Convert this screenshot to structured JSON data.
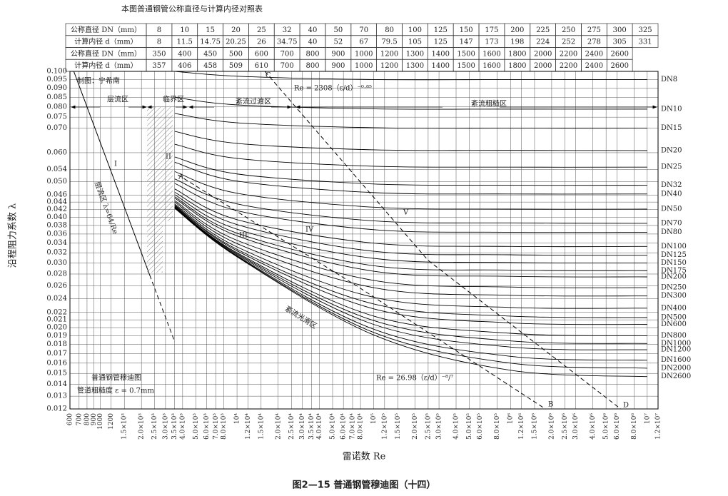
{
  "table": {
    "title": "本图普通钢管公称直径与计算内径对照表",
    "rows": [
      [
        "公称直径 DN（mm）",
        "8",
        "10",
        "15",
        "20",
        "25",
        "32",
        "40",
        "50",
        "70",
        "80",
        "100",
        "125",
        "150",
        "175",
        "200",
        "225",
        "250",
        "275",
        "300",
        "325"
      ],
      [
        "计算内径 d（mm）",
        "8",
        "11.5",
        "14.75",
        "20.25",
        "26",
        "34.75",
        "40",
        "52",
        "67",
        "79.5",
        "105",
        "125",
        "147",
        "173",
        "198",
        "224",
        "252",
        "278",
        "305",
        "331"
      ],
      [
        "公称直径 DN（mm）",
        "350",
        "400",
        "450",
        "500",
        "600",
        "700",
        "800",
        "900",
        "1000",
        "1200",
        "1300",
        "1400",
        "1500",
        "1600",
        "1800",
        "2000",
        "2200",
        "2400",
        "2600"
      ],
      [
        "计算内径 d（mm）",
        "357",
        "406",
        "458",
        "509",
        "610",
        "700",
        "800",
        "900",
        "1000",
        "1200",
        "1300",
        "1400",
        "1500",
        "1600",
        "1800",
        "2000",
        "2200",
        "2400",
        "2600"
      ]
    ]
  },
  "chart_data": {
    "type": "line",
    "caption": "图2—15  普通钢管穆迪图（十四）",
    "x_label": "雷诺数 Re",
    "y_label": "沿程阻力系数 λ",
    "log_x": true,
    "log_y": true,
    "grid": true,
    "color": "#000000",
    "xlim": [
      600,
      12000000
    ],
    "ylim": [
      0.012,
      0.1
    ],
    "xticks": [
      600,
      700,
      800,
      900,
      1000,
      1200,
      {
        "value": 1500,
        "label": "1.5×10³"
      },
      {
        "value": 2000,
        "label": "2.0×10³"
      },
      {
        "value": 2500,
        "label": "2.5×10³"
      },
      {
        "value": 3000,
        "label": "3.0×10³"
      },
      {
        "value": 3500,
        "label": "3.5×10³"
      },
      {
        "value": 4000,
        "label": "4.0×10³"
      },
      {
        "value": 5000,
        "label": "5.0×10³"
      },
      {
        "value": 6000,
        "label": "6.0×10³"
      },
      {
        "value": 7000,
        "label": "7.0×10³"
      },
      {
        "value": 8000,
        "label": "8.0×10³"
      },
      {
        "value": 10000,
        "label": "10⁴"
      },
      {
        "value": 12000,
        "label": "1.2×10⁴"
      },
      {
        "value": 15000,
        "label": "1.5×10⁴"
      },
      {
        "value": 20000,
        "label": "2.0×10⁴"
      },
      {
        "value": 25000,
        "label": "2.5×10⁴"
      },
      {
        "value": 30000,
        "label": "3.0×10⁴"
      },
      {
        "value": 35000,
        "label": "3.5×10⁴"
      },
      {
        "value": 40000,
        "label": "4.0×10⁴"
      },
      {
        "value": 50000,
        "label": "5.0×10⁴"
      },
      {
        "value": 60000,
        "label": "6.0×10⁴"
      },
      {
        "value": 70000,
        "label": "7.0×10⁴"
      },
      {
        "value": 80000,
        "label": "8.0×10⁴"
      },
      {
        "value": 100000,
        "label": "10⁵"
      },
      {
        "value": 120000,
        "label": "1.2×10⁵"
      },
      {
        "value": 150000,
        "label": "1.5×10⁵"
      },
      {
        "value": 200000,
        "label": "2.0×10⁵"
      },
      {
        "value": 250000,
        "label": "2.5×10⁵"
      },
      {
        "value": 300000,
        "label": "3.0×10⁵"
      },
      {
        "value": 400000,
        "label": "4.0×10⁵"
      },
      {
        "value": 500000,
        "label": "5.0×10⁵"
      },
      {
        "value": 600000,
        "label": "6.0×10⁵"
      },
      {
        "value": 800000,
        "label": "8.0×10⁵"
      },
      {
        "value": 1000000,
        "label": "10⁶"
      },
      {
        "value": 1200000,
        "label": "1.2×10⁶"
      },
      {
        "value": 1500000,
        "label": "1.5×10⁶"
      },
      {
        "value": 2000000,
        "label": "2.0×10⁶"
      },
      {
        "value": 2500000,
        "label": "2.5×10⁶"
      },
      {
        "value": 3000000,
        "label": "3.0×10⁶"
      },
      {
        "value": 4000000,
        "label": "4.0×10⁶"
      },
      {
        "value": 5000000,
        "label": "5.0×10⁶"
      },
      {
        "value": 6000000,
        "label": "6.0×10⁶"
      },
      {
        "value": 8000000,
        "label": "8.0×10⁶"
      },
      {
        "value": 10000000,
        "label": "10⁷"
      },
      {
        "value": 12000000,
        "label": "1.2×10⁷"
      }
    ],
    "yticks": [
      {
        "value": 0.1,
        "label": "0.100"
      },
      0.095,
      {
        "value": 0.09,
        "label": "0.090"
      },
      0.085,
      {
        "value": 0.08,
        "label": "0.080"
      },
      0.075,
      {
        "value": 0.07,
        "label": "0.070"
      },
      {
        "value": 0.06,
        "label": "0.060"
      },
      0.054,
      {
        "value": 0.05,
        "label": "0.050"
      },
      0.046,
      0.044,
      0.042,
      {
        "value": 0.04,
        "label": "0.040"
      },
      0.038,
      0.036,
      0.034,
      0.032,
      {
        "value": 0.03,
        "label": "0.030"
      },
      0.028,
      0.026,
      0.024,
      0.022,
      0.021,
      {
        "value": 0.02,
        "label": "0.020"
      },
      0.019,
      0.018,
      0.017,
      0.016,
      0.015,
      0.014,
      0.013,
      0.012
    ],
    "x": [
      3500,
      10000,
      100000,
      1000000,
      10000000
    ],
    "series": [
      {
        "name": "DN8",
        "values": [
          0.1,
          0.097,
          0.095,
          0.095,
          0.095
        ]
      },
      {
        "name": "DN10",
        "values": [
          0.085,
          0.081,
          0.079,
          0.0789,
          0.0789
        ]
      },
      {
        "name": "DN15",
        "values": [
          0.0768,
          0.0724,
          0.0702,
          0.07,
          0.07
        ]
      },
      {
        "name": "DN20",
        "values": [
          0.0686,
          0.0636,
          0.0611,
          0.0609,
          0.0608
        ]
      },
      {
        "name": "DN25",
        "values": [
          0.0633,
          0.0579,
          0.0551,
          0.0548,
          0.0548
        ]
      },
      {
        "name": "DN32",
        "values": [
          0.0584,
          0.0525,
          0.0493,
          0.0489,
          0.0489
        ]
      },
      {
        "name": "DN40",
        "values": [
          0.0565,
          0.0502,
          0.0467,
          0.0463,
          0.0463
        ]
      },
      {
        "name": "DN50",
        "values": [
          0.0533,
          0.0465,
          0.0426,
          0.0421,
          0.0421
        ]
      },
      {
        "name": "DN70",
        "values": [
          0.0509,
          0.0435,
          0.0391,
          0.0386,
          0.0385
        ]
      },
      {
        "name": "DN80",
        "values": [
          0.0495,
          0.0417,
          0.037,
          0.0364,
          0.0364
        ]
      },
      {
        "name": "DN100",
        "values": [
          0.0478,
          0.0394,
          0.034,
          0.0333,
          0.0333
        ]
      },
      {
        "name": "DN125",
        "values": [
          0.0468,
          0.0382,
          0.0323,
          0.0316,
          0.0315
        ]
      },
      {
        "name": "DN150",
        "values": [
          0.0461,
          0.0371,
          0.0309,
          0.0301,
          0.03
        ]
      },
      {
        "name": "DN175",
        "values": [
          0.0455,
          0.0362,
          0.0295,
          0.0287,
          0.0286
        ]
      },
      {
        "name": "DN200",
        "values": [
          0.0451,
          0.0356,
          0.0285,
          0.0276,
          0.0275
        ]
      },
      {
        "name": "DN250",
        "values": [
          0.0444,
          0.0346,
          0.0269,
          0.0258,
          0.0257
        ]
      },
      {
        "name": "DN300",
        "values": [
          0.044,
          0.0339,
          0.0257,
          0.0245,
          0.0244
        ]
      },
      {
        "name": "DN400",
        "values": [
          0.0435,
          0.0332,
          0.0242,
          0.0227,
          0.0226
        ]
      },
      {
        "name": "DN500",
        "values": [
          0.0432,
          0.0327,
          0.0232,
          0.0215,
          0.0213
        ]
      },
      {
        "name": "DN600",
        "values": [
          0.043,
          0.0324,
          0.0225,
          0.0206,
          0.0204
        ]
      },
      {
        "name": "DN800",
        "values": [
          0.0428,
          0.032,
          0.0215,
          0.0193,
          0.019
        ]
      },
      {
        "name": "DN1000",
        "values": [
          0.0427,
          0.0318,
          0.0209,
          0.0184,
          0.0181
        ]
      },
      {
        "name": "DN1200",
        "values": [
          0.0426,
          0.0316,
          0.0204,
          0.0177,
          0.0174
        ]
      },
      {
        "name": "DN1600",
        "values": [
          0.0425,
          0.0314,
          0.0198,
          0.0167,
          0.0163
        ]
      },
      {
        "name": "DN2000",
        "values": [
          0.0424,
          0.0313,
          0.0194,
          0.016,
          0.0155
        ]
      },
      {
        "name": "DN2600",
        "values": [
          0.0423,
          0.0312,
          0.0191,
          0.0153,
          0.0147
        ]
      },
      {
        "x": [
          640,
          2300
        ],
        "values": [
          0.1,
          0.0278
        ],
        "style": "solid"
      },
      {
        "x": [
          2300,
          3500
        ],
        "values": [
          0.0278,
          0.0183
        ],
        "style": "dashed"
      },
      {
        "x": [
          16000,
          250000,
          6400000
        ],
        "values": [
          0.1,
          0.0305,
          0.012
        ],
        "style": "dashed"
      },
      {
        "x": [
          3700,
          75000,
          1800000
        ],
        "values": [
          0.0522,
          0.026,
          0.012
        ],
        "style": "dashed"
      }
    ],
    "annotations": [
      "制图：宁希南",
      "层流区",
      "临界区",
      "紊流过渡区",
      "紊流粗糙区",
      "紊流光滑区",
      "I",
      "II",
      "III",
      "IV",
      "V",
      "A",
      "B",
      "C",
      "D",
      "Re = 2308（ε/d）⁻⁰·⁸⁵",
      "Re = 26.98（ε/d）⁻⁸/⁷",
      "层流区 λ=64/Re",
      "普通钢管穆迪图",
      "管道粗糙度 ε = 0.7mm"
    ]
  }
}
